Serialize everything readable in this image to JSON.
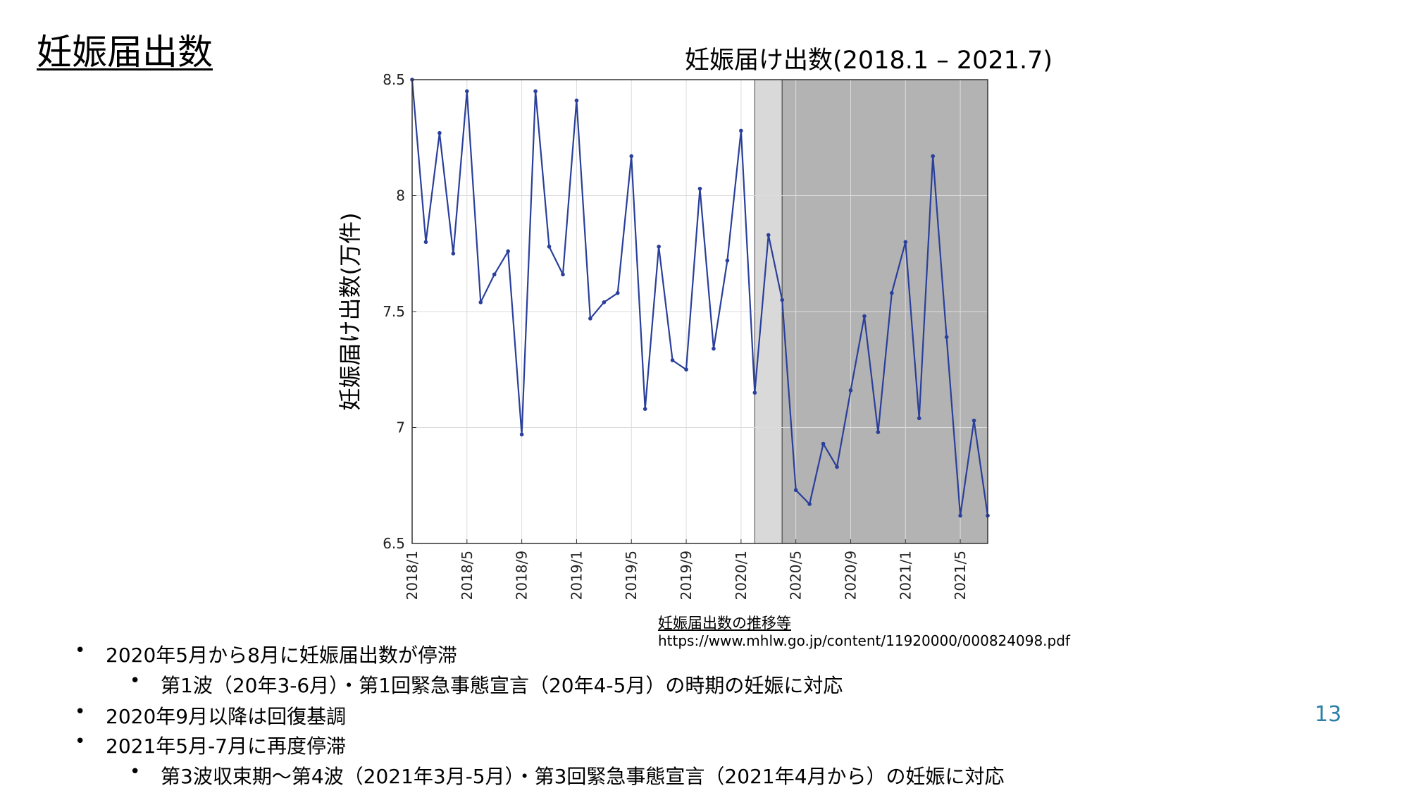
{
  "slide": {
    "title": "妊娠届出数",
    "page_number": "13",
    "accent_color": "#2d7fa6"
  },
  "source": {
    "title": "妊娠届出数の推移等",
    "url": "https://www.mhlw.go.jp/content/11920000/000824098.pdf"
  },
  "bullets": [
    {
      "level": 1,
      "text": "2020年5月から8月に妊娠届出数が停滞"
    },
    {
      "level": 2,
      "text": "第1波（20年3-6月）・第1回緊急事態宣言（20年4-5月）の時期の妊娠に対応"
    },
    {
      "level": 1,
      "text": "2020年9月以降は回復基調"
    },
    {
      "level": 1,
      "text": "2021年5月-7月に再度停滞"
    },
    {
      "level": 2,
      "text": "第3波収束期〜第4波（2021年3月-5月）・第3回緊急事態宣言（2021年4月から）の妊娠に対応"
    }
  ],
  "chart_data": {
    "type": "line",
    "title": "妊娠届け出数(2018.1 – 2021.7)",
    "xlabel": "",
    "ylabel": "妊娠届け出数(万件)",
    "ylim": [
      6.5,
      8.5
    ],
    "yticks": [
      "6.5",
      "7",
      "7.5",
      "8",
      "8.5"
    ],
    "xlim": [
      0,
      42
    ],
    "xticks": [
      {
        "label": "2018/1",
        "index": 0
      },
      {
        "label": "2018/5",
        "index": 4
      },
      {
        "label": "2018/9",
        "index": 8
      },
      {
        "label": "2019/1",
        "index": 12
      },
      {
        "label": "2019/5",
        "index": 16
      },
      {
        "label": "2019/9",
        "index": 20
      },
      {
        "label": "2020/1",
        "index": 24
      },
      {
        "label": "2020/5",
        "index": 28
      },
      {
        "label": "2020/9",
        "index": 32
      },
      {
        "label": "2021/1",
        "index": 36
      },
      {
        "label": "2021/5",
        "index": 40
      }
    ],
    "grid": true,
    "line_color": "#2a3f9a",
    "shaded_regions": [
      {
        "from": 25,
        "to": 27,
        "color": "#d9d9d9"
      },
      {
        "from": 27,
        "to": 42,
        "color": "#b3b3b3"
      }
    ],
    "series": [
      {
        "x": [
          "2018/1",
          "2018/2",
          "2018/3",
          "2018/4",
          "2018/5",
          "2018/6",
          "2018/7",
          "2018/8",
          "2018/9",
          "2018/10",
          "2018/11",
          "2018/12",
          "2019/1",
          "2019/2",
          "2019/3",
          "2019/4",
          "2019/5",
          "2019/6",
          "2019/7",
          "2019/8",
          "2019/9",
          "2019/10",
          "2019/11",
          "2019/12",
          "2020/1",
          "2020/2",
          "2020/3",
          "2020/4",
          "2020/5",
          "2020/6",
          "2020/7",
          "2020/8",
          "2020/9",
          "2020/10",
          "2020/11",
          "2020/12",
          "2021/1",
          "2021/2",
          "2021/3",
          "2021/4",
          "2021/5",
          "2021/6",
          "2021/7"
        ],
        "values": [
          8.52,
          7.8,
          8.27,
          7.75,
          8.45,
          7.54,
          7.66,
          7.76,
          6.97,
          8.45,
          7.78,
          7.66,
          8.41,
          7.47,
          7.54,
          7.58,
          8.17,
          7.08,
          7.78,
          7.29,
          7.25,
          8.03,
          7.34,
          7.72,
          8.28,
          7.15,
          7.83,
          7.55,
          6.73,
          6.67,
          6.93,
          6.83,
          7.16,
          7.48,
          6.98,
          7.58,
          7.8,
          7.04,
          8.17,
          7.39,
          6.62,
          7.03,
          6.62
        ]
      }
    ]
  }
}
